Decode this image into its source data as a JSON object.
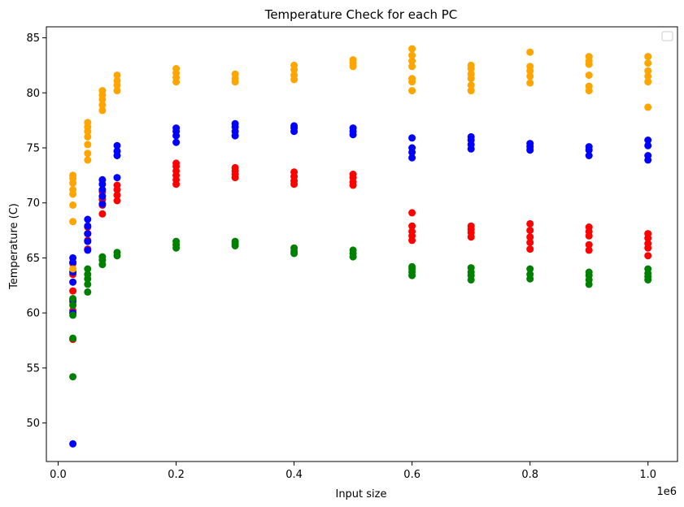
{
  "chart_data": {
    "type": "scatter",
    "title": "Temperature Check for each PC",
    "xlabel": "Input size",
    "ylabel": "Temperature (C)",
    "x_offset_label": "1e6",
    "xlim": [
      -20000,
      1050000
    ],
    "ylim": [
      46.5,
      86
    ],
    "x_ticks": [
      0,
      200000,
      400000,
      600000,
      800000,
      1000000
    ],
    "x_tick_labels": [
      "0.0",
      "0.2",
      "0.4",
      "0.6",
      "0.8",
      "1.0"
    ],
    "y_ticks": [
      50,
      55,
      60,
      65,
      70,
      75,
      80,
      85
    ],
    "y_tick_labels": [
      "50",
      "55",
      "60",
      "65",
      "70",
      "75",
      "80",
      "85"
    ],
    "grid": false,
    "legend": "top-right",
    "series": [
      {
        "color": "#ff0000",
        "points": [
          [
            25000,
            57.6
          ],
          [
            25000,
            60.2
          ],
          [
            25000,
            61.0
          ],
          [
            25000,
            62.0
          ],
          [
            25000,
            63.5
          ],
          [
            25000,
            64.5
          ],
          [
            50000,
            65.8
          ],
          [
            50000,
            66.6
          ],
          [
            50000,
            67.2
          ],
          [
            50000,
            67.8
          ],
          [
            75000,
            69.0
          ],
          [
            75000,
            69.8
          ],
          [
            75000,
            70.3
          ],
          [
            75000,
            71.0
          ],
          [
            100000,
            70.2
          ],
          [
            100000,
            70.7
          ],
          [
            100000,
            71.2
          ],
          [
            100000,
            71.6
          ],
          [
            200000,
            71.7
          ],
          [
            200000,
            72.1
          ],
          [
            200000,
            72.5
          ],
          [
            200000,
            72.9
          ],
          [
            200000,
            73.3
          ],
          [
            200000,
            73.6
          ],
          [
            300000,
            72.3
          ],
          [
            300000,
            72.6
          ],
          [
            300000,
            72.9
          ],
          [
            300000,
            73.2
          ],
          [
            400000,
            71.7
          ],
          [
            400000,
            72.0
          ],
          [
            400000,
            72.4
          ],
          [
            400000,
            72.8
          ],
          [
            500000,
            71.6
          ],
          [
            500000,
            71.9
          ],
          [
            500000,
            72.3
          ],
          [
            500000,
            72.6
          ],
          [
            600000,
            66.6
          ],
          [
            600000,
            67.0
          ],
          [
            600000,
            67.4
          ],
          [
            600000,
            67.9
          ],
          [
            600000,
            69.1
          ],
          [
            700000,
            66.9
          ],
          [
            700000,
            67.3
          ],
          [
            700000,
            67.6
          ],
          [
            700000,
            67.9
          ],
          [
            800000,
            65.8
          ],
          [
            800000,
            66.4
          ],
          [
            800000,
            66.9
          ],
          [
            800000,
            67.5
          ],
          [
            800000,
            68.1
          ],
          [
            900000,
            65.7
          ],
          [
            900000,
            66.2
          ],
          [
            900000,
            67.0
          ],
          [
            900000,
            67.4
          ],
          [
            900000,
            67.8
          ],
          [
            1000000,
            65.2
          ],
          [
            1000000,
            65.9
          ],
          [
            1000000,
            66.3
          ],
          [
            1000000,
            66.8
          ],
          [
            1000000,
            67.2
          ]
        ]
      },
      {
        "color": "#0000ff",
        "points": [
          [
            25000,
            48.1
          ],
          [
            25000,
            60.0
          ],
          [
            25000,
            61.2
          ],
          [
            25000,
            62.8
          ],
          [
            25000,
            63.7
          ],
          [
            25000,
            64.6
          ],
          [
            25000,
            65.0
          ],
          [
            50000,
            65.7
          ],
          [
            50000,
            66.5
          ],
          [
            50000,
            67.2
          ],
          [
            50000,
            67.9
          ],
          [
            50000,
            68.5
          ],
          [
            75000,
            69.9
          ],
          [
            75000,
            70.6
          ],
          [
            75000,
            71.2
          ],
          [
            75000,
            71.7
          ],
          [
            75000,
            72.1
          ],
          [
            100000,
            72.3
          ],
          [
            100000,
            74.3
          ],
          [
            100000,
            74.7
          ],
          [
            100000,
            75.2
          ],
          [
            200000,
            75.5
          ],
          [
            200000,
            76.1
          ],
          [
            200000,
            76.5
          ],
          [
            200000,
            76.8
          ],
          [
            300000,
            76.1
          ],
          [
            300000,
            76.5
          ],
          [
            300000,
            76.9
          ],
          [
            300000,
            77.2
          ],
          [
            400000,
            76.5
          ],
          [
            400000,
            76.8
          ],
          [
            400000,
            77.0
          ],
          [
            500000,
            76.2
          ],
          [
            500000,
            76.5
          ],
          [
            500000,
            76.8
          ],
          [
            600000,
            74.1
          ],
          [
            600000,
            74.6
          ],
          [
            600000,
            75.0
          ],
          [
            600000,
            75.9
          ],
          [
            700000,
            74.9
          ],
          [
            700000,
            75.3
          ],
          [
            700000,
            75.7
          ],
          [
            700000,
            76.0
          ],
          [
            800000,
            74.8
          ],
          [
            800000,
            75.1
          ],
          [
            800000,
            75.4
          ],
          [
            900000,
            74.3
          ],
          [
            900000,
            74.8
          ],
          [
            900000,
            75.1
          ],
          [
            1000000,
            73.9
          ],
          [
            1000000,
            74.3
          ],
          [
            1000000,
            75.2
          ],
          [
            1000000,
            75.7
          ]
        ]
      },
      {
        "color": "#ffa500",
        "points": [
          [
            25000,
            64.0
          ],
          [
            25000,
            68.3
          ],
          [
            25000,
            69.8
          ],
          [
            25000,
            70.8
          ],
          [
            25000,
            71.2
          ],
          [
            25000,
            71.8
          ],
          [
            25000,
            72.2
          ],
          [
            25000,
            72.5
          ],
          [
            50000,
            73.9
          ],
          [
            50000,
            74.5
          ],
          [
            50000,
            75.3
          ],
          [
            50000,
            76.0
          ],
          [
            50000,
            76.5
          ],
          [
            50000,
            76.9
          ],
          [
            50000,
            77.3
          ],
          [
            75000,
            78.4
          ],
          [
            75000,
            78.9
          ],
          [
            75000,
            79.4
          ],
          [
            75000,
            79.8
          ],
          [
            75000,
            80.2
          ],
          [
            100000,
            80.2
          ],
          [
            100000,
            80.7
          ],
          [
            100000,
            81.1
          ],
          [
            100000,
            81.6
          ],
          [
            200000,
            81.0
          ],
          [
            200000,
            81.4
          ],
          [
            200000,
            81.8
          ],
          [
            200000,
            82.2
          ],
          [
            300000,
            81.0
          ],
          [
            300000,
            81.3
          ],
          [
            300000,
            81.7
          ],
          [
            400000,
            81.2
          ],
          [
            400000,
            81.6
          ],
          [
            400000,
            82.1
          ],
          [
            400000,
            82.5
          ],
          [
            500000,
            82.4
          ],
          [
            500000,
            82.7
          ],
          [
            500000,
            83.0
          ],
          [
            600000,
            80.2
          ],
          [
            600000,
            81.0
          ],
          [
            600000,
            81.3
          ],
          [
            600000,
            82.4
          ],
          [
            600000,
            82.9
          ],
          [
            600000,
            83.4
          ],
          [
            600000,
            84.0
          ],
          [
            700000,
            80.2
          ],
          [
            700000,
            80.7
          ],
          [
            700000,
            81.3
          ],
          [
            700000,
            81.7
          ],
          [
            700000,
            82.2
          ],
          [
            700000,
            82.5
          ],
          [
            800000,
            80.9
          ],
          [
            800000,
            81.5
          ],
          [
            800000,
            82.0
          ],
          [
            800000,
            82.4
          ],
          [
            800000,
            83.7
          ],
          [
            900000,
            80.2
          ],
          [
            900000,
            80.6
          ],
          [
            900000,
            81.6
          ],
          [
            900000,
            82.6
          ],
          [
            900000,
            82.9
          ],
          [
            900000,
            83.3
          ],
          [
            1000000,
            78.7
          ],
          [
            1000000,
            81.0
          ],
          [
            1000000,
            81.5
          ],
          [
            1000000,
            82.0
          ],
          [
            1000000,
            82.7
          ],
          [
            1000000,
            83.3
          ]
        ]
      },
      {
        "color": "#008000",
        "points": [
          [
            25000,
            54.2
          ],
          [
            25000,
            57.7
          ],
          [
            25000,
            59.8
          ],
          [
            25000,
            60.7
          ],
          [
            25000,
            61.3
          ],
          [
            50000,
            61.9
          ],
          [
            50000,
            62.6
          ],
          [
            50000,
            63.1
          ],
          [
            50000,
            63.5
          ],
          [
            50000,
            64.0
          ],
          [
            75000,
            64.4
          ],
          [
            75000,
            64.8
          ],
          [
            75000,
            65.1
          ],
          [
            100000,
            65.2
          ],
          [
            100000,
            65.5
          ],
          [
            200000,
            65.9
          ],
          [
            200000,
            66.2
          ],
          [
            200000,
            66.5
          ],
          [
            300000,
            66.1
          ],
          [
            300000,
            66.3
          ],
          [
            300000,
            66.5
          ],
          [
            400000,
            65.4
          ],
          [
            400000,
            65.6
          ],
          [
            400000,
            65.9
          ],
          [
            500000,
            65.1
          ],
          [
            500000,
            65.4
          ],
          [
            500000,
            65.7
          ],
          [
            600000,
            63.4
          ],
          [
            600000,
            63.7
          ],
          [
            600000,
            64.0
          ],
          [
            600000,
            64.2
          ],
          [
            700000,
            63.0
          ],
          [
            700000,
            63.4
          ],
          [
            700000,
            63.7
          ],
          [
            700000,
            64.1
          ],
          [
            800000,
            63.1
          ],
          [
            800000,
            63.5
          ],
          [
            800000,
            64.0
          ],
          [
            900000,
            62.6
          ],
          [
            900000,
            63.0
          ],
          [
            900000,
            63.4
          ],
          [
            900000,
            63.7
          ],
          [
            1000000,
            63.0
          ],
          [
            1000000,
            63.3
          ],
          [
            1000000,
            63.6
          ],
          [
            1000000,
            64.0
          ]
        ]
      }
    ]
  }
}
